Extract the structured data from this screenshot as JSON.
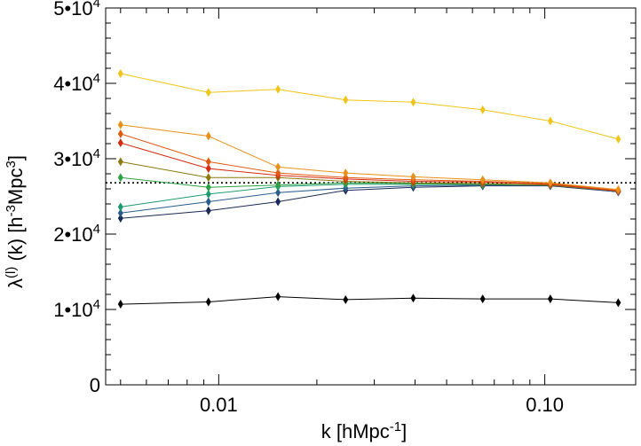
{
  "chart_data": {
    "type": "line",
    "xlabel": "k [hMpc^-1]",
    "ylabel": "λ^(l) (k) [h^-3Mpc^3]",
    "x_scale": "log",
    "xlim": [
      0.0045,
      0.19
    ],
    "ylim": [
      0,
      50000
    ],
    "x": [
      0.005,
      0.0093,
      0.0152,
      0.0245,
      0.0395,
      0.0645,
      0.104,
      0.168
    ],
    "x_ticks": [
      {
        "value": 0.01,
        "label": "0.01"
      },
      {
        "value": 0.1,
        "label": "0.10"
      }
    ],
    "y_ticks": [
      {
        "value": 0,
        "label": "0"
      },
      {
        "value": 10000,
        "mantissa": "1•10",
        "exp": "4"
      },
      {
        "value": 20000,
        "mantissa": "2•10",
        "exp": "4"
      },
      {
        "value": 30000,
        "mantissa": "3•10",
        "exp": "4"
      },
      {
        "value": 40000,
        "mantissa": "4•10",
        "exp": "4"
      },
      {
        "value": 50000,
        "mantissa": "5•10",
        "exp": "4"
      }
    ],
    "reference_line": {
      "y": 26800,
      "style": "dotted",
      "color": "#000000"
    },
    "grid": false,
    "legend": "none",
    "series": [
      {
        "color": "#000000",
        "values": [
          10700,
          11000,
          11700,
          11300,
          11500,
          11400,
          11400,
          10900
        ]
      },
      {
        "color": "#1b2a55",
        "values": [
          22100,
          23100,
          24300,
          25800,
          26200,
          26400,
          26400,
          25600
        ]
      },
      {
        "color": "#2b5c8a",
        "values": [
          22800,
          24300,
          25500,
          26100,
          26400,
          26500,
          26500,
          25600
        ]
      },
      {
        "color": "#1e9b6e",
        "values": [
          23600,
          25300,
          26300,
          26600,
          26600,
          26600,
          26500,
          25700
        ]
      },
      {
        "color": "#2ea043",
        "values": [
          27500,
          26200,
          26500,
          26800,
          26700,
          26600,
          26500,
          25700
        ]
      },
      {
        "color": "#8a7a10",
        "values": [
          29600,
          27500,
          27500,
          27000,
          26800,
          26700,
          26500,
          25700
        ]
      },
      {
        "color": "#d42b10",
        "values": [
          32100,
          28700,
          27800,
          27300,
          27000,
          26900,
          26600,
          25700
        ]
      },
      {
        "color": "#e05a10",
        "values": [
          33300,
          29600,
          28100,
          27500,
          27200,
          27000,
          26700,
          25800
        ]
      },
      {
        "color": "#e8901a",
        "values": [
          34500,
          33000,
          28900,
          28100,
          27600,
          27200,
          26800,
          25900
        ]
      },
      {
        "color": "#f0c418",
        "values": [
          41300,
          38800,
          39200,
          37800,
          37500,
          36500,
          35000,
          32600
        ]
      }
    ]
  }
}
